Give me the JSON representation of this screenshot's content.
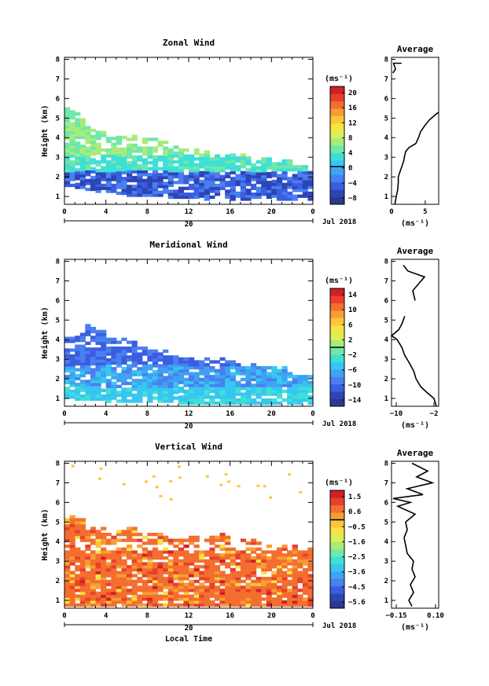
{
  "chart_data": [
    {
      "type": "heatmap",
      "title": "Zonal Wind",
      "ylabel": "Height (km)",
      "x_ticks": [
        "0",
        "4",
        "8",
        "12",
        "16",
        "20",
        "0"
      ],
      "y_ticks": [
        "1",
        "2",
        "3",
        "4",
        "5",
        "6",
        "7",
        "8"
      ],
      "xlim": [
        0,
        24
      ],
      "ylim": [
        0.6,
        8.1
      ],
      "date_day": "20",
      "date_month": "Jul 2018",
      "colorbar": {
        "unit": "(ms⁻¹)",
        "ticks": [
          "20",
          "16",
          "12",
          "8",
          "4",
          "0",
          "−4",
          "−8"
        ],
        "vmin": -10,
        "vmax": 22
      },
      "average": {
        "title": "Average",
        "unit": "(ms⁻¹)",
        "x_ticks": [
          "0",
          "5"
        ],
        "xlim": [
          0,
          7
        ],
        "profile": [
          [
            0.6,
            0.5
          ],
          [
            1.0,
            0.7
          ],
          [
            1.3,
            0.9
          ],
          [
            1.7,
            1.0
          ],
          [
            2.0,
            1.0
          ],
          [
            2.3,
            1.3
          ],
          [
            2.5,
            1.5
          ],
          [
            2.8,
            1.8
          ],
          [
            3.0,
            1.9
          ],
          [
            3.3,
            2.1
          ],
          [
            3.5,
            2.6
          ],
          [
            3.7,
            3.6
          ],
          [
            4.0,
            4.0
          ],
          [
            4.3,
            4.3
          ],
          [
            4.6,
            4.9
          ],
          [
            4.9,
            5.6
          ],
          [
            5.2,
            6.6
          ],
          [
            5.3,
            7.0
          ]
        ],
        "profile_upper": [
          [
            7.3,
            0.2
          ],
          [
            7.5,
            0.6
          ],
          [
            7.8,
            0.3
          ],
          [
            7.8,
            1.5
          ]
        ]
      },
      "extent": {
        "top": [
          5.4,
          5.1,
          4.5,
          4.4,
          4.1,
          4.1,
          4.0,
          3.8,
          3.9,
          3.8,
          3.6,
          3.4,
          3.3,
          3.1,
          3.0,
          3.1,
          3.2,
          3.0,
          2.9,
          2.8,
          2.7,
          2.7,
          2.6,
          2.5
        ],
        "base": [
          1.5,
          1.4,
          1.3,
          1.2,
          1.2,
          1.1,
          1.0,
          1.0,
          1.0,
          1.0,
          0.9,
          0.9,
          0.9,
          0.8,
          0.9,
          0.9,
          0.8,
          0.8,
          0.9,
          0.9,
          0.8,
          0.8,
          0.8,
          0.8
        ],
        "gap": [
          3.4,
          3.8
        ]
      }
    },
    {
      "type": "heatmap",
      "title": "Meridional Wind",
      "ylabel": "Height (km)",
      "x_ticks": [
        "0",
        "4",
        "8",
        "12",
        "16",
        "20",
        "0"
      ],
      "y_ticks": [
        "1",
        "2",
        "3",
        "4",
        "5",
        "6",
        "7",
        "8"
      ],
      "xlim": [
        0,
        24
      ],
      "ylim": [
        0.6,
        8.1
      ],
      "date_day": "20",
      "date_month": "Jul 2018",
      "colorbar": {
        "unit": "(ms⁻¹)",
        "ticks": [
          "14",
          "10",
          "6",
          "2",
          "−2",
          "−6",
          "−10",
          "−14"
        ],
        "vmin": -16,
        "vmax": 16
      },
      "average": {
        "title": "Average",
        "unit": "(ms⁻¹)",
        "x_ticks": [
          "−10",
          "−2"
        ],
        "xlim": [
          -11,
          -1
        ],
        "profile": [
          [
            0.6,
            -1.5
          ],
          [
            1.0,
            -2.0
          ],
          [
            1.3,
            -3.5
          ],
          [
            1.6,
            -4.8
          ],
          [
            2.0,
            -5.8
          ],
          [
            2.4,
            -6.3
          ],
          [
            2.8,
            -7.2
          ],
          [
            3.2,
            -8.2
          ],
          [
            3.6,
            -8.8
          ],
          [
            4.0,
            -9.8
          ],
          [
            4.2,
            -11.0
          ],
          [
            4.5,
            -9.5
          ],
          [
            4.8,
            -8.8
          ],
          [
            5.2,
            -8.2
          ]
        ],
        "profile_upper": [
          [
            6.0,
            -6.0
          ],
          [
            6.5,
            -6.5
          ],
          [
            7.2,
            -4.0
          ],
          [
            7.5,
            -7.5
          ],
          [
            7.8,
            -8.5
          ]
        ]
      },
      "extent": {
        "top": [
          4.2,
          4.1,
          4.6,
          4.3,
          4.0,
          3.9,
          3.8,
          3.7,
          3.5,
          3.3,
          3.2,
          3.1,
          3.0,
          2.9,
          2.8,
          2.9,
          2.9,
          2.7,
          2.6,
          2.5,
          2.5,
          2.4,
          2.3,
          2.2
        ],
        "base": [
          1.0,
          0.9,
          0.9,
          0.9,
          0.8,
          0.8,
          0.8,
          0.8,
          0.8,
          0.8,
          0.8,
          0.7,
          0.7,
          0.7,
          0.7,
          0.7,
          0.7,
          0.7,
          0.7,
          0.7,
          0.7,
          0.7,
          0.7,
          0.7
        ],
        "gap": [
          3.5,
          3.7
        ]
      }
    },
    {
      "type": "heatmap",
      "title": "Vertical Wind",
      "ylabel": "Height (km)",
      "xlabel": "Local Time",
      "x_ticks": [
        "0",
        "4",
        "8",
        "12",
        "16",
        "20",
        "0"
      ],
      "y_ticks": [
        "1",
        "2",
        "3",
        "4",
        "5",
        "6",
        "7",
        "8"
      ],
      "xlim": [
        0,
        24
      ],
      "ylim": [
        0.6,
        8.1
      ],
      "date_day": "20",
      "date_month": "Jul 2018",
      "colorbar": {
        "unit": "(ms⁻¹)",
        "ticks": [
          "1.5",
          "0.6",
          "−0.5",
          "−1.6",
          "−2.5",
          "−3.6",
          "−4.5",
          "−5.6"
        ],
        "vmin": -6,
        "vmax": 2
      },
      "average": {
        "title": "Average",
        "unit": "(ms⁻¹)",
        "x_ticks": [
          "−0.15",
          "0.10"
        ],
        "xlim": [
          -0.18,
          0.12
        ],
        "profile": [
          [
            0.7,
            -0.05
          ],
          [
            1.0,
            -0.07
          ],
          [
            1.4,
            -0.04
          ],
          [
            1.8,
            -0.06
          ],
          [
            2.2,
            -0.03
          ],
          [
            2.6,
            -0.05
          ],
          [
            3.0,
            -0.04
          ],
          [
            3.4,
            -0.08
          ],
          [
            3.8,
            -0.09
          ],
          [
            4.2,
            -0.1
          ],
          [
            4.6,
            -0.08
          ],
          [
            5.0,
            -0.09
          ],
          [
            5.4,
            -0.03
          ],
          [
            5.8,
            -0.14
          ],
          [
            6.0,
            -0.06
          ],
          [
            6.2,
            -0.17
          ],
          [
            6.4,
            0.02
          ],
          [
            6.7,
            -0.08
          ],
          [
            7.0,
            0.08
          ],
          [
            7.3,
            -0.02
          ],
          [
            7.6,
            0.05
          ],
          [
            8.0,
            -0.05
          ]
        ]
      },
      "extent": {
        "top": [
          5.2,
          5.1,
          4.6,
          4.6,
          4.4,
          4.5,
          4.5,
          4.4,
          4.4,
          4.3,
          4.2,
          4.1,
          4.1,
          4.0,
          4.2,
          4.3,
          4.1,
          4.0,
          4.0,
          3.9,
          3.8,
          3.8,
          3.8,
          3.7
        ],
        "base": [
          0.7,
          0.7,
          0.7,
          0.7,
          0.7,
          0.7,
          0.7,
          0.7,
          0.7,
          0.7,
          0.7,
          0.7,
          0.7,
          0.7,
          0.7,
          0.7,
          0.7,
          0.7,
          0.7,
          0.7,
          0.7,
          0.7,
          0.7,
          0.7
        ],
        "gap": [
          3.5,
          3.9
        ]
      }
    }
  ]
}
